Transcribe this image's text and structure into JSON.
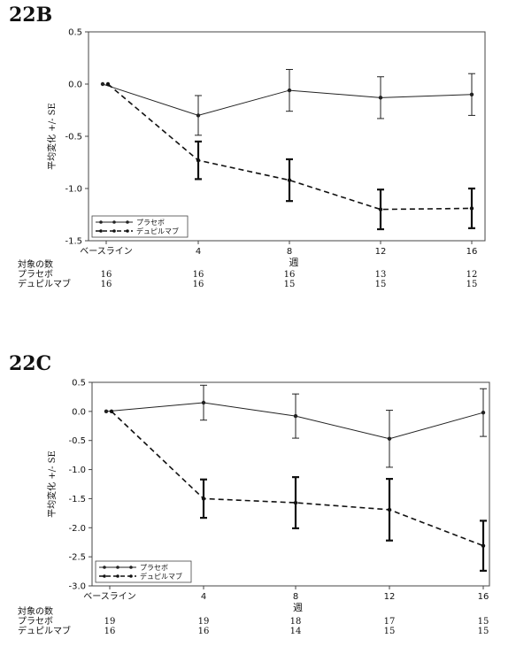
{
  "chart_data": [
    {
      "panel_label": "22B",
      "type": "line",
      "categories": [
        "ベースライン",
        "4",
        "8",
        "12",
        "16"
      ],
      "xlabel": "週",
      "ylabel": "平均変化 +/- SE",
      "ylim": [
        -1.5,
        0.5
      ],
      "yticks": [
        "0.5",
        "0.0",
        "-0.5",
        "-1.0",
        "-1.5"
      ],
      "grid": false,
      "legend_position": "bottom-left",
      "series": [
        {
          "name": "プラセボ",
          "line_style": "solid",
          "color": "#222222",
          "values": [
            0.0,
            -0.3,
            -0.06,
            -0.13,
            -0.1
          ],
          "se": [
            0.0,
            0.19,
            0.2,
            0.2,
            0.2
          ]
        },
        {
          "name": "デュピルマブ",
          "line_style": "dashed",
          "color": "#111111",
          "values": [
            0.0,
            -0.73,
            -0.92,
            -1.2,
            -1.19
          ],
          "se": [
            0.0,
            0.18,
            0.2,
            0.19,
            0.19
          ]
        }
      ],
      "n_table": {
        "title": "対象の数",
        "rows": [
          {
            "label": "プラセボ",
            "values": [
              "16",
              "16",
              "16",
              "13",
              "12"
            ]
          },
          {
            "label": "デュピルマブ",
            "values": [
              "16",
              "16",
              "15",
              "15",
              "15"
            ]
          }
        ]
      }
    },
    {
      "panel_label": "22C",
      "type": "line",
      "categories": [
        "ベースライン",
        "4",
        "8",
        "12",
        "16"
      ],
      "xlabel": "週",
      "ylabel": "平均変化 +/- SE",
      "ylim": [
        -3.0,
        0.5
      ],
      "yticks": [
        "0.5",
        "0.0",
        "-0.5",
        "-1.0",
        "-1.5",
        "-2.0",
        "-2.5",
        "-3.0"
      ],
      "grid": false,
      "legend_position": "bottom-left",
      "series": [
        {
          "name": "プラセボ",
          "line_style": "solid",
          "color": "#222222",
          "values": [
            0.0,
            0.15,
            -0.08,
            -0.47,
            -0.02
          ],
          "se": [
            0.0,
            0.3,
            0.38,
            0.49,
            0.41
          ]
        },
        {
          "name": "デュピルマブ",
          "line_style": "dashed",
          "color": "#111111",
          "values": [
            0.0,
            -1.5,
            -1.57,
            -1.69,
            -2.31
          ],
          "se": [
            0.0,
            0.33,
            0.44,
            0.53,
            0.43
          ]
        }
      ],
      "n_table": {
        "title": "対象の数",
        "rows": [
          {
            "label": "プラセボ",
            "values": [
              "19",
              "19",
              "18",
              "17",
              "15"
            ]
          },
          {
            "label": "デュピルマブ",
            "values": [
              "16",
              "16",
              "14",
              "15",
              "15"
            ]
          }
        ]
      }
    }
  ]
}
